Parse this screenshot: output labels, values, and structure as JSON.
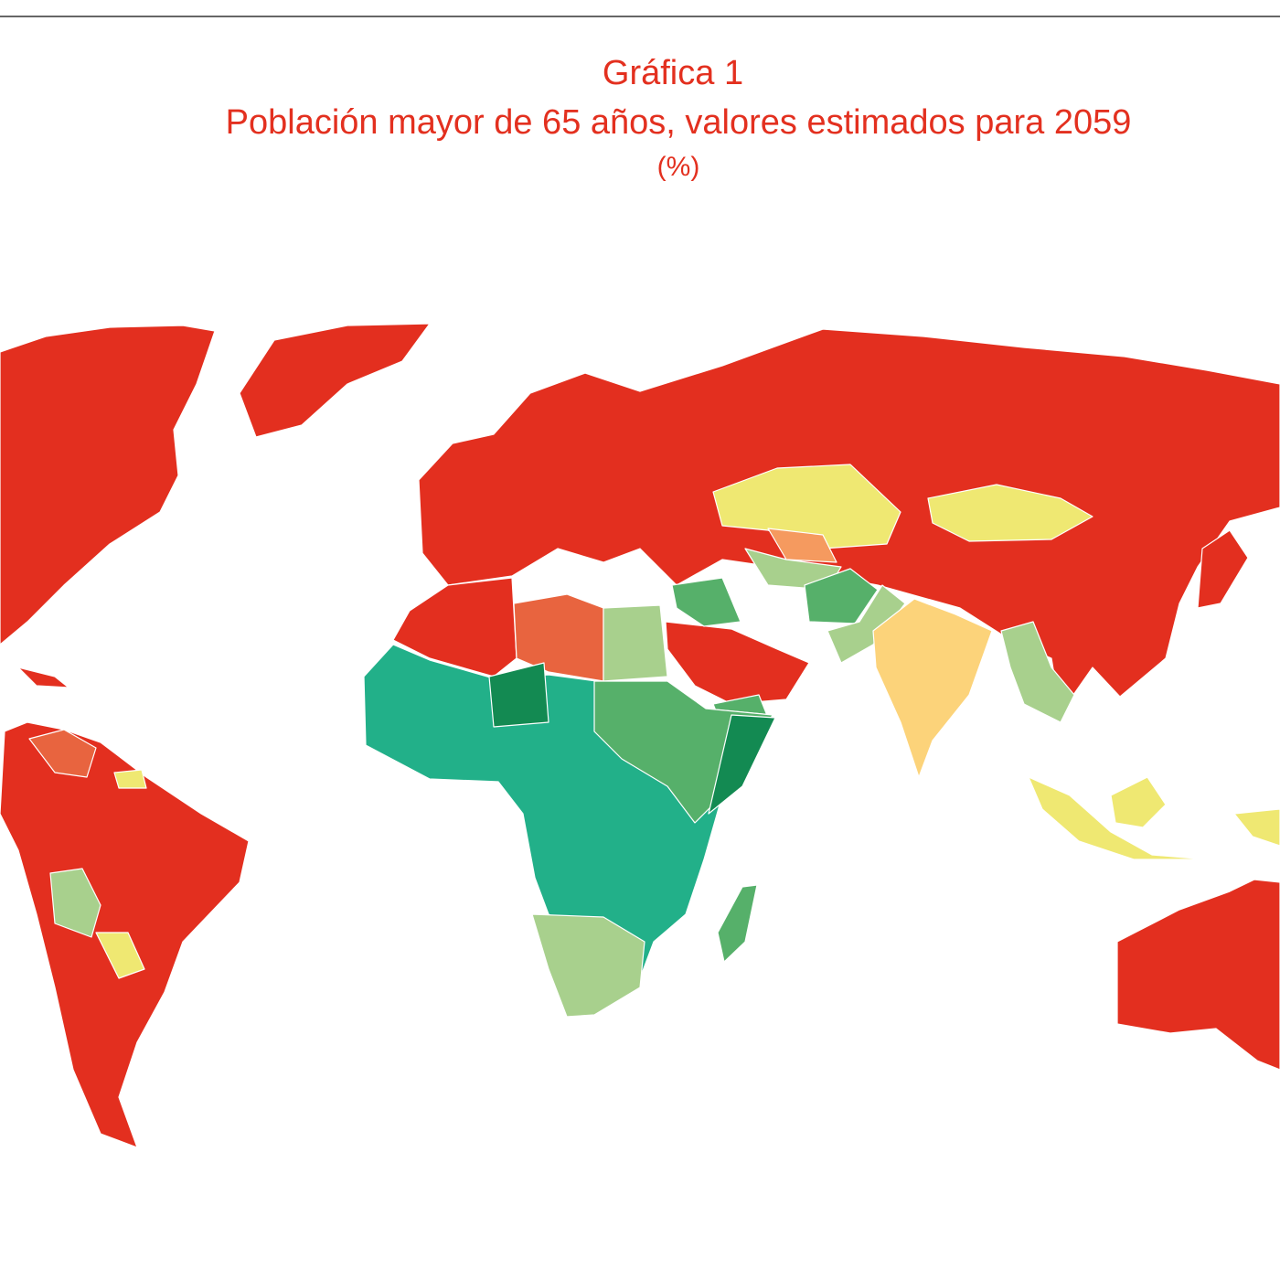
{
  "header": {
    "title": "Gráfica 1",
    "subtitle": "Población mayor de 65 años, valores estimados para 2059",
    "unit": "(%)"
  }
}
